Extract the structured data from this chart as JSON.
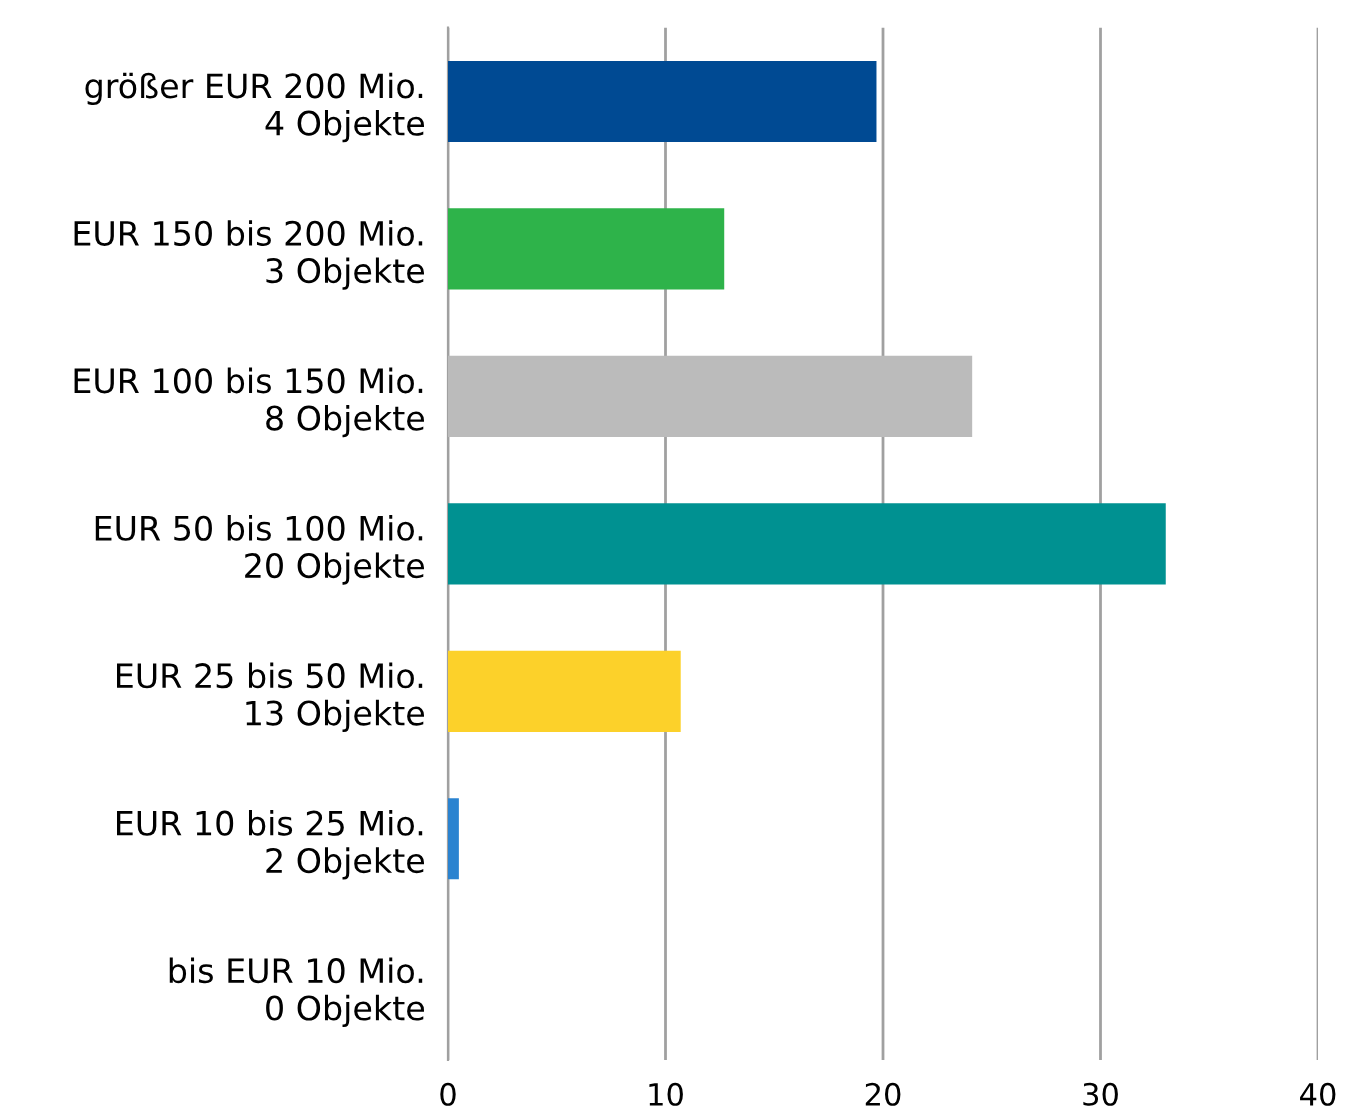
{
  "chart_data": {
    "type": "bar",
    "orientation": "horizontal",
    "categories": [
      "größer EUR 200 Mio.\n4 Objekte",
      "EUR 150 bis 200 Mio.\n3 Objekte",
      "EUR 100 bis 150 Mio.\n8 Objekte",
      "EUR 50 bis 100 Mio.\n20 Objekte",
      "EUR 25 bis 50 Mio.\n13 Objekte",
      "EUR 10 bis 25 Mio.\n2 Objekte",
      "bis EUR 10 Mio.\n0 Objekte"
    ],
    "values": [
      19.7,
      12.7,
      24.1,
      33.0,
      10.7,
      0.5,
      0
    ],
    "colors": [
      "#004a93",
      "#2eb34a",
      "#bbbbbb",
      "#009191",
      "#fcd12a",
      "#2a83d0",
      "#7f7f7f"
    ],
    "xlim": [
      0,
      40
    ],
    "xticks": [
      0,
      10,
      20,
      30,
      40
    ],
    "grid": "x"
  }
}
